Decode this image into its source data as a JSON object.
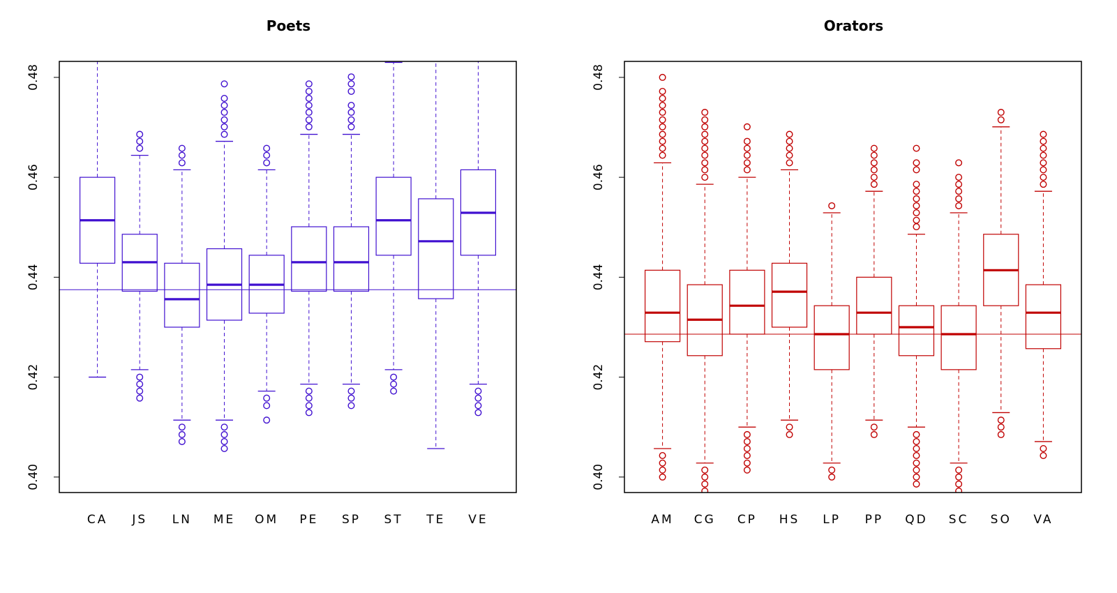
{
  "chart_data": [
    {
      "type": "boxplot",
      "title": "Poets",
      "color": "#4010d0",
      "ylim": [
        0.3969,
        0.4832
      ],
      "y_ticks": [
        0.4,
        0.42,
        0.44,
        0.46,
        0.48
      ],
      "y_tick_labels": [
        "0.40",
        "0.42",
        "0.44",
        "0.46",
        "0.48"
      ],
      "grid": false,
      "reference_line": 0.4375,
      "categories": [
        "CA",
        "JS",
        "LN",
        "ME",
        "OM",
        "PE",
        "SP",
        "ST",
        "TE",
        "VE"
      ],
      "boxes": [
        {
          "whisker_low": 0.42,
          "q1": 0.4428,
          "median": 0.4514,
          "q3": 0.46,
          "whisker_high": 0.484,
          "outliers": []
        },
        {
          "whisker_low": 0.4215,
          "q1": 0.4372,
          "median": 0.443,
          "q3": 0.4486,
          "whisker_high": 0.4644,
          "outliers": [
            0.4686,
            0.4672,
            0.4658,
            0.42,
            0.4186,
            0.4172,
            0.4158
          ]
        },
        {
          "whisker_low": 0.4114,
          "q1": 0.43,
          "median": 0.4356,
          "q3": 0.4428,
          "whisker_high": 0.4615,
          "outliers": [
            0.4658,
            0.4644,
            0.4629,
            0.41,
            0.4085,
            0.4071
          ]
        },
        {
          "whisker_low": 0.4114,
          "q1": 0.4314,
          "median": 0.4385,
          "q3": 0.4457,
          "whisker_high": 0.4672,
          "outliers": [
            0.4787,
            0.4758,
            0.4744,
            0.473,
            0.4715,
            0.4701,
            0.4686,
            0.41,
            0.4085,
            0.4071,
            0.4057
          ]
        },
        {
          "whisker_low": 0.4172,
          "q1": 0.4328,
          "median": 0.4385,
          "q3": 0.4444,
          "whisker_high": 0.4615,
          "outliers": [
            0.4658,
            0.4644,
            0.4629,
            0.4158,
            0.4143,
            0.4114
          ]
        },
        {
          "whisker_low": 0.4186,
          "q1": 0.4372,
          "median": 0.443,
          "q3": 0.4501,
          "whisker_high": 0.4686,
          "outliers": [
            0.4787,
            0.4772,
            0.4758,
            0.4744,
            0.473,
            0.4715,
            0.4701,
            0.4172,
            0.4158,
            0.4143,
            0.4129
          ]
        },
        {
          "whisker_low": 0.4186,
          "q1": 0.4372,
          "median": 0.443,
          "q3": 0.4501,
          "whisker_high": 0.4686,
          "outliers": [
            0.4801,
            0.4787,
            0.4772,
            0.4744,
            0.473,
            0.4715,
            0.4701,
            0.4172,
            0.4158,
            0.4143
          ]
        },
        {
          "whisker_low": 0.4215,
          "q1": 0.4444,
          "median": 0.4514,
          "q3": 0.46,
          "whisker_high": 0.483,
          "outliers": [
            0.42,
            0.4186,
            0.4172
          ]
        },
        {
          "whisker_low": 0.4057,
          "q1": 0.4357,
          "median": 0.4472,
          "q3": 0.4557,
          "whisker_high": 0.484,
          "outliers": []
        },
        {
          "whisker_low": 0.4186,
          "q1": 0.4444,
          "median": 0.4529,
          "q3": 0.4615,
          "whisker_high": 0.484,
          "outliers": [
            0.4172,
            0.4158,
            0.4143,
            0.4129
          ]
        }
      ]
    },
    {
      "type": "boxplot",
      "title": "Orators",
      "color": "#c00000",
      "ylim": [
        0.3969,
        0.4832
      ],
      "y_ticks": [
        0.4,
        0.42,
        0.44,
        0.46,
        0.48
      ],
      "y_tick_labels": [
        "0.40",
        "0.42",
        "0.44",
        "0.46",
        "0.48"
      ],
      "grid": false,
      "reference_line": 0.4286,
      "categories": [
        "AM",
        "CG",
        "CP",
        "HS",
        "LP",
        "PP",
        "QD",
        "SC",
        "SO",
        "VA"
      ],
      "boxes": [
        {
          "whisker_low": 0.4057,
          "q1": 0.4271,
          "median": 0.4329,
          "q3": 0.4414,
          "whisker_high": 0.4629,
          "outliers": [
            0.48,
            0.4772,
            0.4758,
            0.4744,
            0.473,
            0.4715,
            0.4701,
            0.4686,
            0.4672,
            0.4658,
            0.4644,
            0.4043,
            0.4028,
            0.4014,
            0.4
          ]
        },
        {
          "whisker_low": 0.4028,
          "q1": 0.4243,
          "median": 0.4315,
          "q3": 0.4385,
          "whisker_high": 0.4586,
          "outliers": [
            0.473,
            0.4715,
            0.4701,
            0.4686,
            0.4672,
            0.4658,
            0.4644,
            0.4629,
            0.4615,
            0.46,
            0.4014,
            0.4,
            0.3986,
            0.3972
          ]
        },
        {
          "whisker_low": 0.41,
          "q1": 0.4286,
          "median": 0.4343,
          "q3": 0.4414,
          "whisker_high": 0.46,
          "outliers": [
            0.4701,
            0.4672,
            0.4658,
            0.4644,
            0.4629,
            0.4615,
            0.4085,
            0.4071,
            0.4057,
            0.4043,
            0.4028,
            0.4014
          ]
        },
        {
          "whisker_low": 0.4114,
          "q1": 0.43,
          "median": 0.4371,
          "q3": 0.4428,
          "whisker_high": 0.4615,
          "outliers": [
            0.4686,
            0.4672,
            0.4658,
            0.4644,
            0.4629,
            0.41,
            0.4085
          ]
        },
        {
          "whisker_low": 0.4028,
          "q1": 0.4215,
          "median": 0.4286,
          "q3": 0.4343,
          "whisker_high": 0.4529,
          "outliers": [
            0.4543,
            0.4014,
            0.4
          ]
        },
        {
          "whisker_low": 0.4114,
          "q1": 0.4286,
          "median": 0.4329,
          "q3": 0.44,
          "whisker_high": 0.4572,
          "outliers": [
            0.4658,
            0.4644,
            0.4629,
            0.4615,
            0.46,
            0.4586,
            0.41,
            0.4085
          ]
        },
        {
          "whisker_low": 0.41,
          "q1": 0.4243,
          "median": 0.43,
          "q3": 0.4343,
          "whisker_high": 0.4486,
          "outliers": [
            0.4658,
            0.4629,
            0.4615,
            0.4586,
            0.4572,
            0.4557,
            0.4543,
            0.4529,
            0.4514,
            0.4501,
            0.4085,
            0.4071,
            0.4057,
            0.4043,
            0.4028,
            0.4014,
            0.4,
            0.3986
          ]
        },
        {
          "whisker_low": 0.4028,
          "q1": 0.4215,
          "median": 0.4286,
          "q3": 0.4343,
          "whisker_high": 0.4529,
          "outliers": [
            0.4629,
            0.46,
            0.4586,
            0.4572,
            0.4557,
            0.4543,
            0.4014,
            0.4,
            0.3986,
            0.3972
          ]
        },
        {
          "whisker_low": 0.4129,
          "q1": 0.4343,
          "median": 0.4414,
          "q3": 0.4486,
          "whisker_high": 0.4701,
          "outliers": [
            0.473,
            0.4715,
            0.4114,
            0.41,
            0.4085
          ]
        },
        {
          "whisker_low": 0.4071,
          "q1": 0.4257,
          "median": 0.4329,
          "q3": 0.4385,
          "whisker_high": 0.4572,
          "outliers": [
            0.4686,
            0.4672,
            0.4658,
            0.4644,
            0.4629,
            0.4615,
            0.46,
            0.4586,
            0.4057,
            0.4043
          ]
        }
      ]
    }
  ]
}
